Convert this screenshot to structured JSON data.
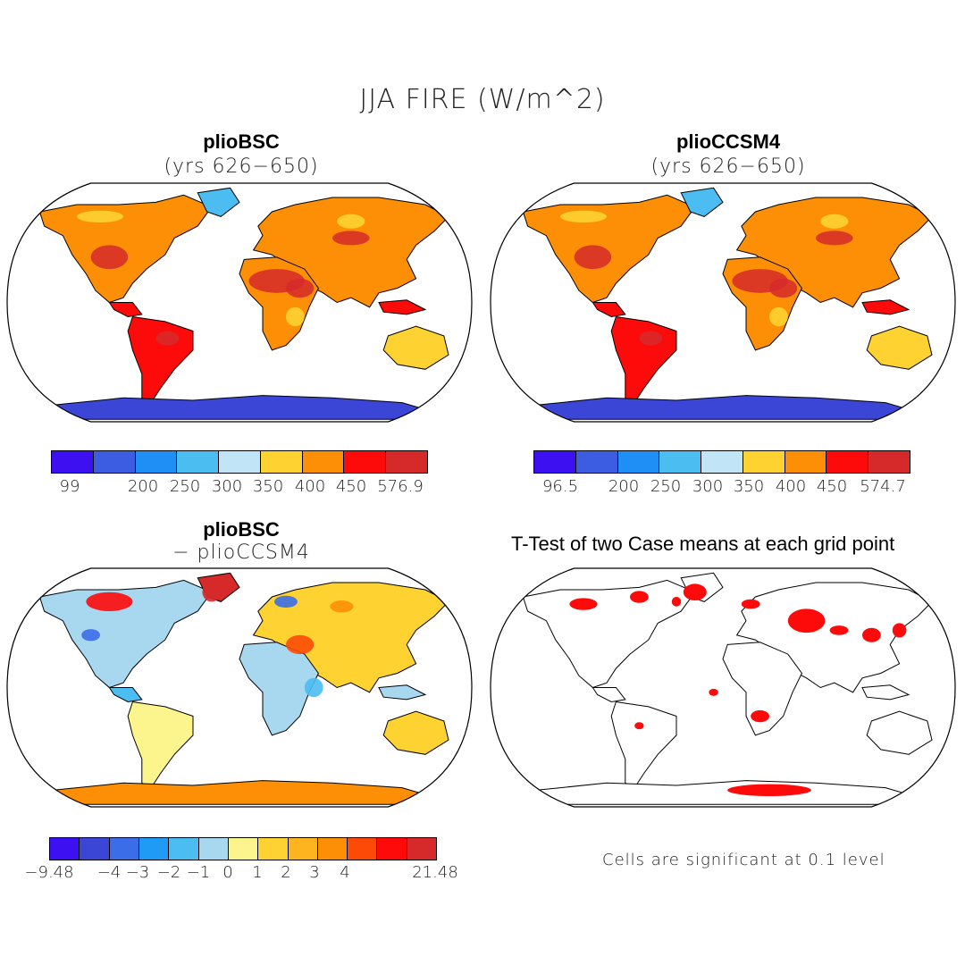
{
  "title": "JJA FIRE (W/m^2)",
  "panels": [
    {
      "title": "plioBSC",
      "subtitle": "(yrs 626−650)",
      "colorbar": {
        "colors": [
          "#3c10f0",
          "#3c5ce2",
          "#1f8ff5",
          "#4cbdf1",
          "#c2e4f7",
          "#fdd231",
          "#fd8f07",
          "#fd0a0a",
          "#d62a2a"
        ],
        "labels": [
          "99",
          "200",
          "250",
          "300",
          "350",
          "400",
          "450",
          "576.9"
        ]
      }
    },
    {
      "title": "plioCCSM4",
      "subtitle": "(yrs 626−650)",
      "colorbar": {
        "colors": [
          "#3c10f0",
          "#3c5ce2",
          "#1f8ff5",
          "#4cbdf1",
          "#c2e4f7",
          "#fdd231",
          "#fd8f07",
          "#fd0a0a",
          "#d62a2a"
        ],
        "labels": [
          "96.5",
          "200",
          "250",
          "300",
          "350",
          "400",
          "450",
          "574.7"
        ]
      }
    },
    {
      "title": "plioBSC",
      "subtitle": "− plioCCSM4",
      "colorbar": {
        "colors": [
          "#3c10f0",
          "#3c46d6",
          "#3c6de8",
          "#1f9bf5",
          "#4cbdf1",
          "#a8d7f0",
          "#fcf48c",
          "#fdd231",
          "#fdb41e",
          "#fd8f07",
          "#fd4b07",
          "#fd0a0a",
          "#d62a2a"
        ],
        "labels": [
          "−9.48",
          "−4",
          "−3",
          "−2",
          "−1",
          "0",
          "1",
          "2",
          "3",
          "4",
          "21.48"
        ]
      }
    },
    {
      "title": "T-Test of two Case means at each grid point",
      "note": "Cells are significant at 0.1 level"
    }
  ]
}
